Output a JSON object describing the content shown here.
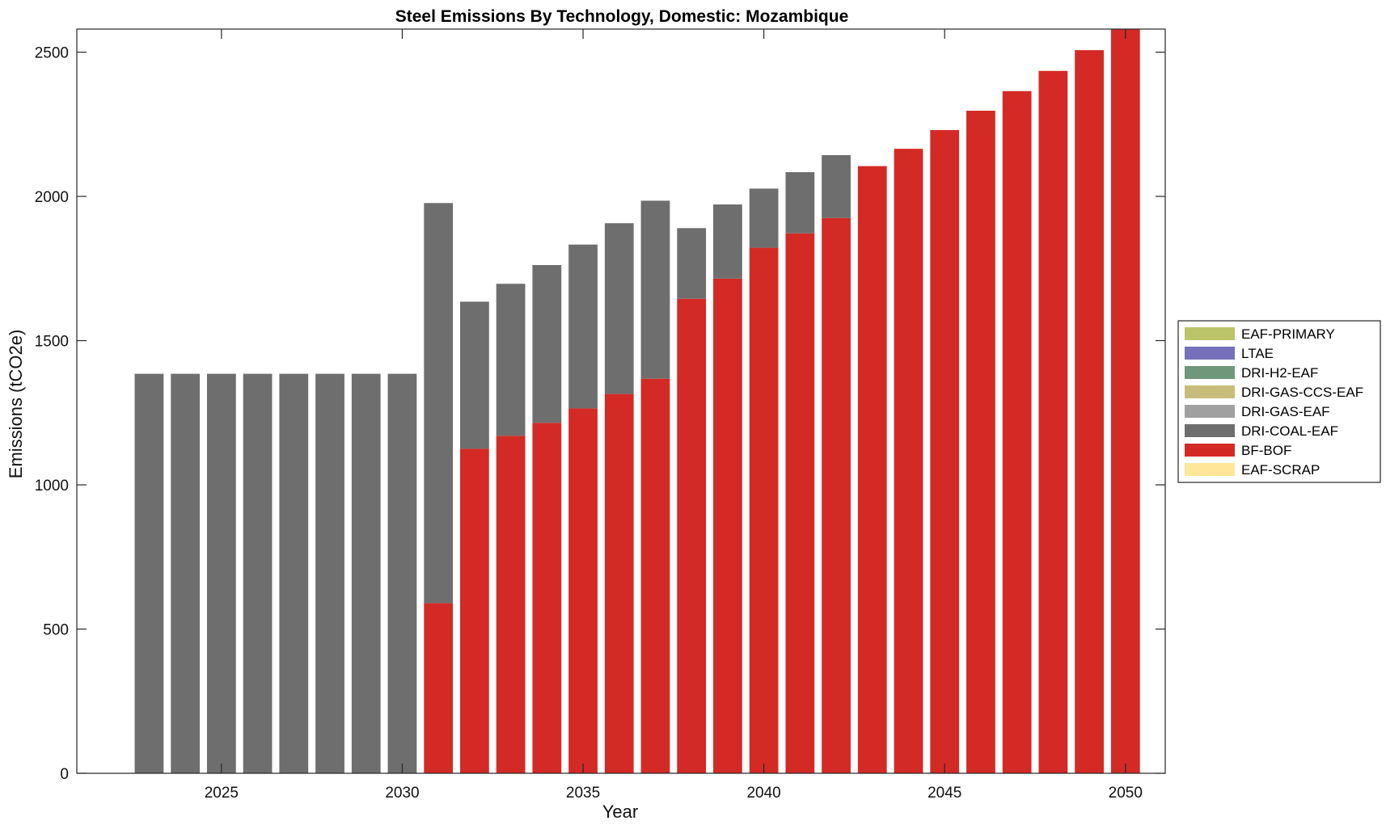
{
  "chart_data": {
    "type": "bar",
    "stacked": true,
    "title": "Steel Emissions By Technology, Domestic: Mozambique",
    "xlabel": "Year",
    "ylabel": "Emissions (tCO2e)",
    "xlim": [
      2021,
      2051.1
    ],
    "ylim": [
      0,
      2580
    ],
    "xticks": [
      2025,
      2030,
      2035,
      2040,
      2045,
      2050
    ],
    "yticks": [
      0,
      500,
      1000,
      1500,
      2000,
      2500
    ],
    "legend_position": "right",
    "categories": [
      2023,
      2024,
      2025,
      2026,
      2027,
      2028,
      2029,
      2030,
      2031,
      2032,
      2033,
      2034,
      2035,
      2036,
      2037,
      2038,
      2039,
      2040,
      2041,
      2042,
      2043,
      2044,
      2045,
      2046,
      2047,
      2048,
      2049,
      2050
    ],
    "series": [
      {
        "name": "EAF-SCRAP",
        "color": "#FFE699",
        "values": [
          0,
          0,
          0,
          0,
          0,
          0,
          0,
          0,
          0,
          0,
          0,
          0,
          0,
          0,
          0,
          0,
          0,
          0,
          0,
          0,
          0,
          0,
          0,
          0,
          0,
          0,
          0,
          0
        ]
      },
      {
        "name": "BF-BOF",
        "color": "#D42A25",
        "values": [
          0,
          0,
          0,
          0,
          0,
          0,
          0,
          0,
          590,
          1125,
          1170,
          1215,
          1265,
          1315,
          1368,
          1645,
          1715,
          1822,
          1872,
          1925,
          2105,
          2165,
          2230,
          2297,
          2365,
          2435,
          2507,
          2580
        ]
      },
      {
        "name": "DRI-COAL-EAF",
        "color": "#6E6E6E",
        "values": [
          1385,
          1385,
          1385,
          1385,
          1385,
          1385,
          1385,
          1385,
          1387,
          510,
          527,
          547,
          568,
          592,
          617,
          245,
          257,
          205,
          212,
          218,
          0,
          0,
          0,
          0,
          0,
          0,
          0,
          0
        ]
      },
      {
        "name": "DRI-GAS-EAF",
        "color": "#A0A0A0",
        "values": [
          0,
          0,
          0,
          0,
          0,
          0,
          0,
          0,
          0,
          0,
          0,
          0,
          0,
          0,
          0,
          0,
          0,
          0,
          0,
          0,
          0,
          0,
          0,
          0,
          0,
          0,
          0,
          0
        ]
      },
      {
        "name": "DRI-GAS-CCS-EAF",
        "color": "#C8BC7A",
        "values": [
          0,
          0,
          0,
          0,
          0,
          0,
          0,
          0,
          0,
          0,
          0,
          0,
          0,
          0,
          0,
          0,
          0,
          0,
          0,
          0,
          0,
          0,
          0,
          0,
          0,
          0,
          0,
          0
        ]
      },
      {
        "name": "DRI-H2-EAF",
        "color": "#6F977A",
        "values": [
          0,
          0,
          0,
          0,
          0,
          0,
          0,
          0,
          0,
          0,
          0,
          0,
          0,
          0,
          0,
          0,
          0,
          0,
          0,
          0,
          0,
          0,
          0,
          0,
          0,
          0,
          0,
          0
        ]
      },
      {
        "name": "LTAE",
        "color": "#7570B9",
        "values": [
          0,
          0,
          0,
          0,
          0,
          0,
          0,
          0,
          0,
          0,
          0,
          0,
          0,
          0,
          0,
          0,
          0,
          0,
          0,
          0,
          0,
          0,
          0,
          0,
          0,
          0,
          0,
          0
        ]
      },
      {
        "name": "EAF-PRIMARY",
        "color": "#BCC46A",
        "values": [
          0,
          0,
          0,
          0,
          0,
          0,
          0,
          0,
          0,
          0,
          0,
          0,
          0,
          0,
          0,
          0,
          0,
          0,
          0,
          0,
          0,
          0,
          0,
          0,
          0,
          0,
          0,
          0
        ]
      }
    ],
    "legend_order": [
      "EAF-PRIMARY",
      "LTAE",
      "DRI-H2-EAF",
      "DRI-GAS-CCS-EAF",
      "DRI-GAS-EAF",
      "DRI-COAL-EAF",
      "BF-BOF",
      "EAF-SCRAP"
    ]
  }
}
